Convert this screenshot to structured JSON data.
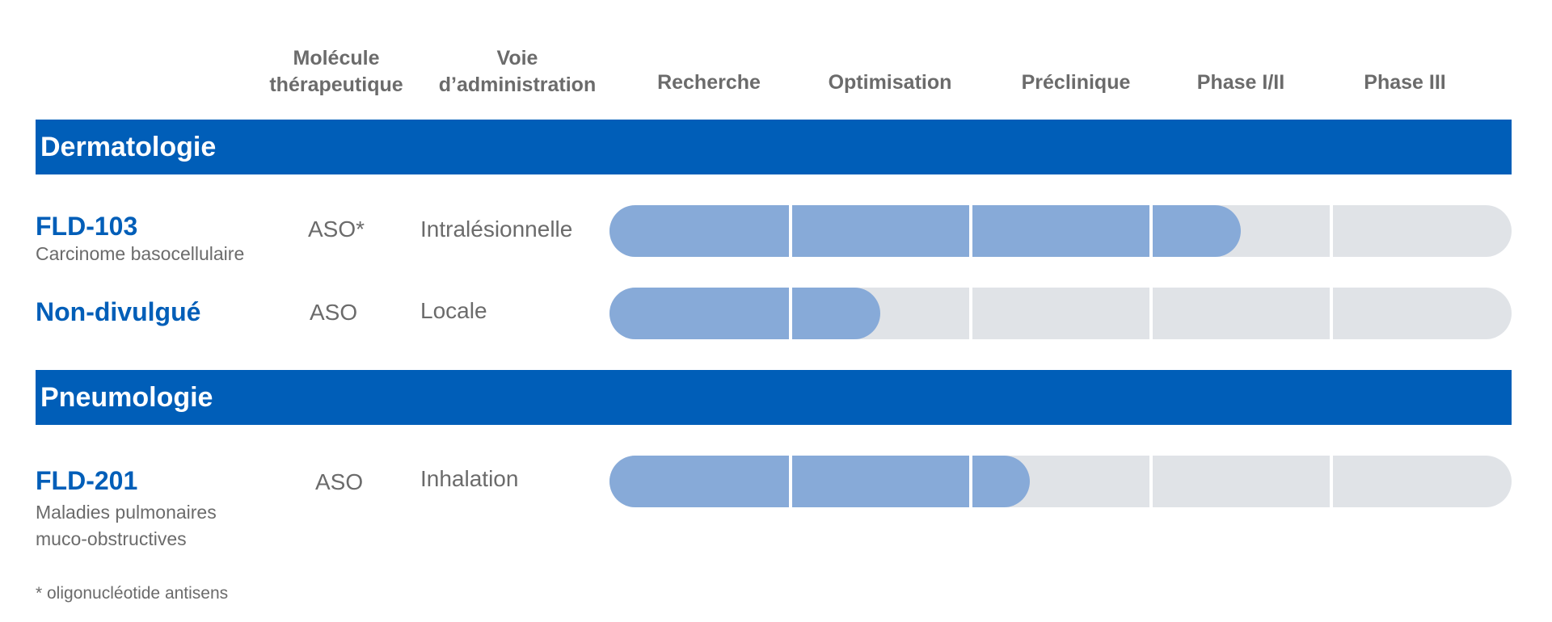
{
  "headers": {
    "molecule_line1": "Molécule",
    "molecule_line2": "thérapeutique",
    "route_line1": "Voie",
    "route_line2": "d’administration",
    "stages": [
      "Recherche",
      "Optimisation",
      "Préclinique",
      "Phase I/II",
      "Phase III"
    ]
  },
  "sections": [
    {
      "title": "Dermatologie",
      "products": [
        {
          "name": "FLD-103",
          "indication": [
            "Carcinome basocellulaire"
          ],
          "molecule": "ASO*",
          "route": "Intralésionnelle",
          "progress": 3.5
        },
        {
          "name": "Non-divulgué",
          "indication": [],
          "molecule": "ASO",
          "route": "Locale",
          "progress": 1.5
        }
      ]
    },
    {
      "title": "Pneumologie",
      "products": [
        {
          "name": "FLD-201",
          "indication": [
            "Maladies pulmonaires",
            "muco-obstructives"
          ],
          "molecule": "ASO",
          "route": "Inhalation",
          "progress": 2.33
        }
      ]
    }
  ],
  "footnote": "* oligonucléotide antisens",
  "colors": {
    "brand": "#005eb8",
    "progress_fill": "#87aad8",
    "track": "#e0e3e7",
    "text_gray": "#6b6b6b"
  },
  "chart_data": {
    "type": "bar",
    "title": "",
    "categories": [
      "FLD-103",
      "Non-divulgué",
      "FLD-201"
    ],
    "stages": [
      "Recherche",
      "Optimisation",
      "Préclinique",
      "Phase I/II",
      "Phase III"
    ],
    "values": [
      3.5,
      1.5,
      2.33
    ],
    "xlim": [
      0,
      5
    ],
    "xlabel": "",
    "ylabel": "",
    "orientation": "horizontal"
  }
}
